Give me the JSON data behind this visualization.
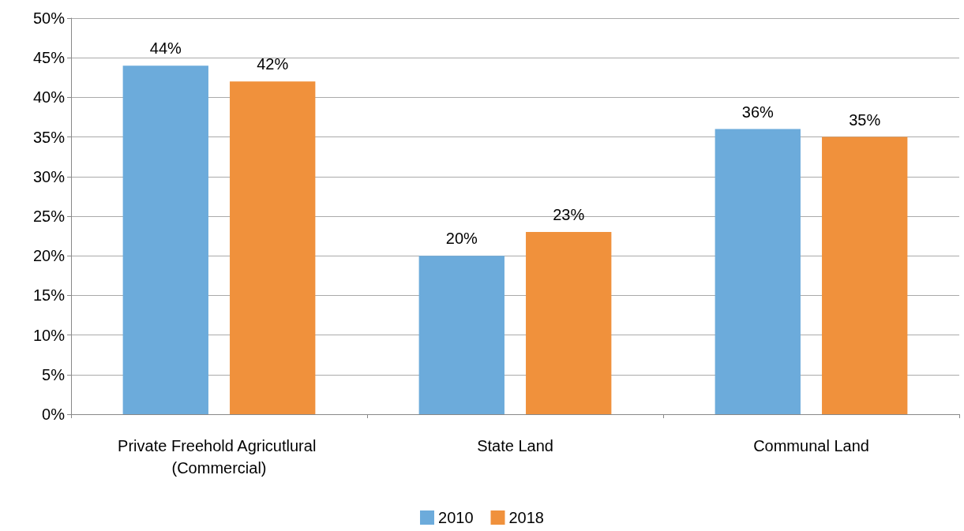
{
  "chart_data": {
    "type": "bar",
    "categories": [
      "Private Freehold Agricutlural (Commercial)",
      "State Land",
      "Communal Land"
    ],
    "series": [
      {
        "name": "2010",
        "color": "#6cabdb",
        "values": [
          44,
          20,
          36
        ],
        "value_labels": [
          "44%",
          "20%",
          "36%"
        ]
      },
      {
        "name": "2018",
        "color": "#f0913c",
        "values": [
          42,
          23,
          35
        ],
        "value_labels": [
          "42%",
          "23%",
          "35%"
        ]
      }
    ],
    "ylim": [
      0,
      50
    ],
    "yticks": [
      {
        "value": 0,
        "label": "0%"
      },
      {
        "value": 5,
        "label": "5%"
      },
      {
        "value": 10,
        "label": "10%"
      },
      {
        "value": 15,
        "label": "15%"
      },
      {
        "value": 20,
        "label": "20%"
      },
      {
        "value": 25,
        "label": "25%"
      },
      {
        "value": 30,
        "label": "30%"
      },
      {
        "value": 35,
        "label": "35%"
      },
      {
        "value": 40,
        "label": "40%"
      },
      {
        "value": 45,
        "label": "45%"
      },
      {
        "value": 50,
        "label": "50%"
      }
    ],
    "grid": "y",
    "legend": "bottom"
  }
}
